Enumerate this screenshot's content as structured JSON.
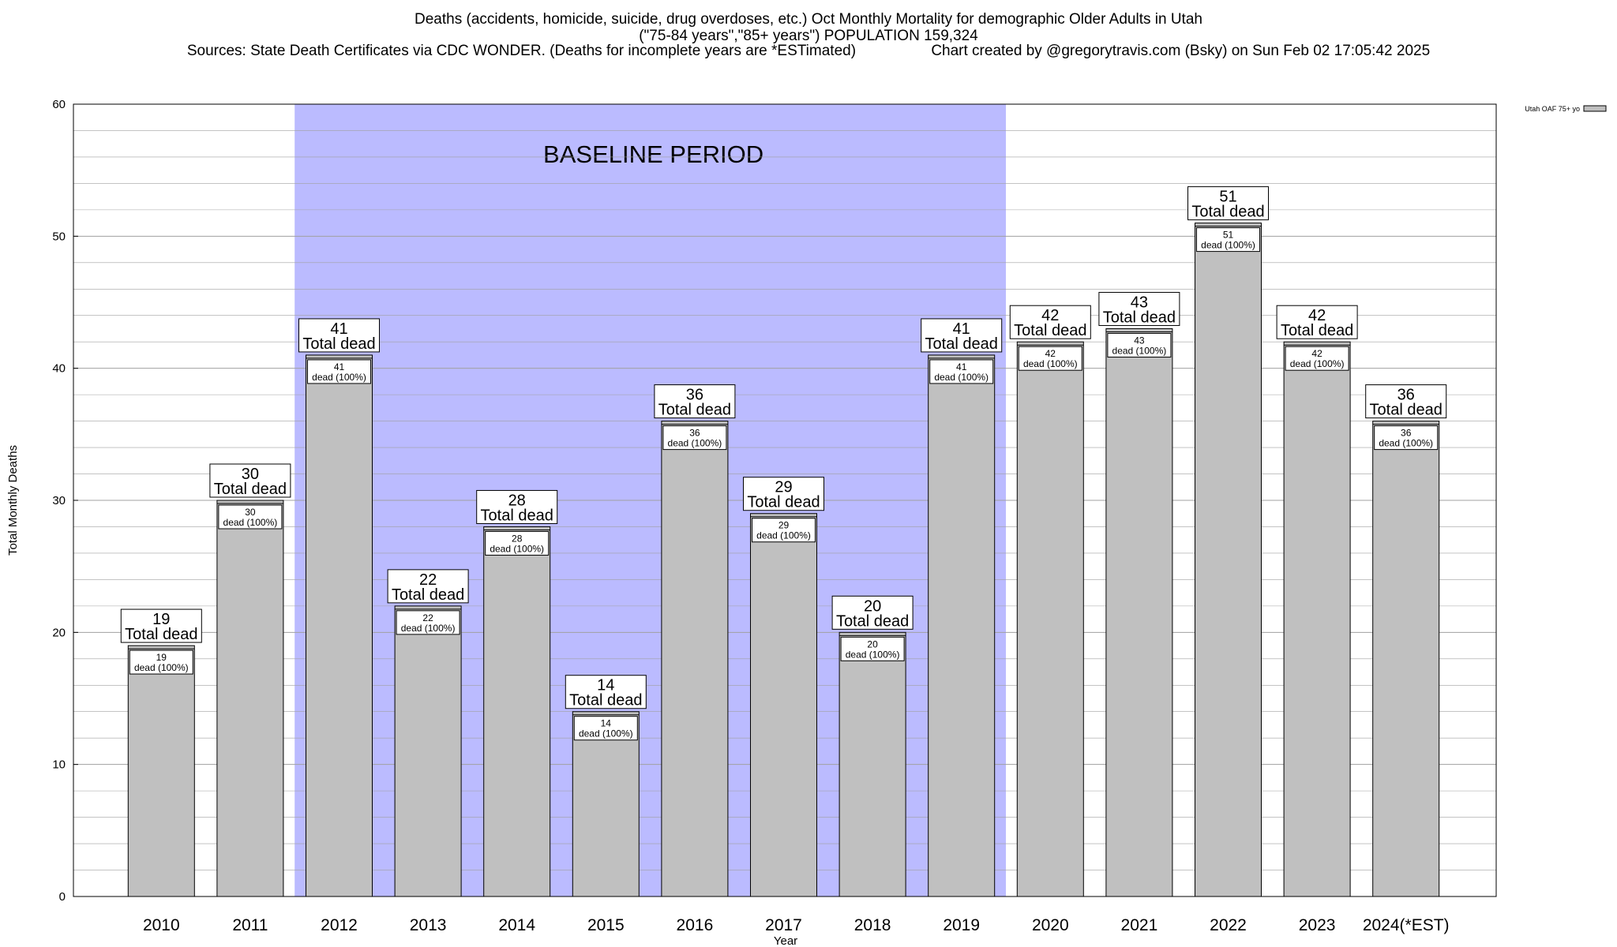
{
  "chart_data": {
    "type": "bar",
    "title_lines": [
      "Deaths (accidents, homicide, suicide, drug overdoses, etc.) Oct Monthly Mortality for demographic Older Adults in Utah",
      "(\"75-84 years\",\"85+ years\") POPULATION 159,324"
    ],
    "sources": "Sources: State Death Certificates via CDC WONDER. (Deaths for incomplete years are *ESTimated)",
    "credit": "Chart created by @gregorytravis.com (Bsky) on Sun Feb 02 17:05:42 2025",
    "xlabel": "Year",
    "ylabel": "Total Monthly Deaths",
    "ylim": [
      0,
      60
    ],
    "yticks": [
      0,
      10,
      20,
      30,
      40,
      50,
      60
    ],
    "grid": true,
    "legend": {
      "placement": "top-right",
      "entries": [
        "Utah OAF 75+ yo"
      ]
    },
    "baseline": {
      "label": "BASELINE PERIOD",
      "start": "2012",
      "end": "2019",
      "color": "#bbbbff"
    },
    "bar_color": "#c0c0c0",
    "categories": [
      "2010",
      "2011",
      "2012",
      "2013",
      "2014",
      "2015",
      "2016",
      "2017",
      "2018",
      "2019",
      "2020",
      "2021",
      "2022",
      "2023",
      "2024(*EST)"
    ],
    "series": [
      {
        "name": "Utah OAF 75+ yo",
        "values": [
          19,
          30,
          41,
          22,
          28,
          14,
          36,
          29,
          20,
          41,
          42,
          43,
          51,
          42,
          36
        ]
      }
    ],
    "total_label_suffix": "Total dead",
    "inner_label_suffix": "dead (100%)"
  }
}
